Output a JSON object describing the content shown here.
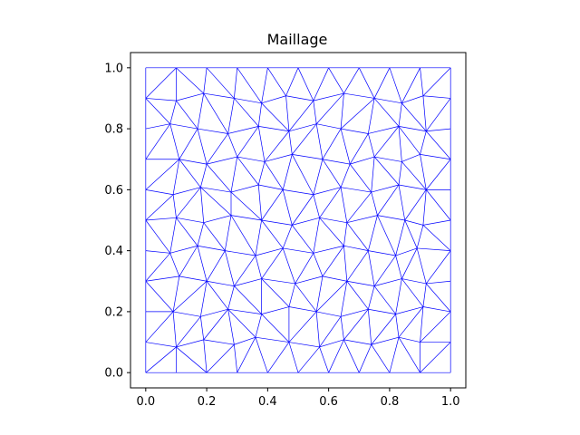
{
  "chart_data": {
    "type": "mesh",
    "title": "Maillage",
    "xlabel": "",
    "ylabel": "",
    "xlim": [
      -0.05,
      1.05
    ],
    "ylim": [
      -0.05,
      1.05
    ],
    "xticks": [
      0.0,
      0.2,
      0.4,
      0.6,
      0.8,
      1.0
    ],
    "yticks": [
      0.0,
      0.2,
      0.4,
      0.6,
      0.8,
      1.0
    ],
    "xtick_labels": [
      "0.0",
      "0.2",
      "0.4",
      "0.6",
      "0.8",
      "1.0"
    ],
    "ytick_labels": [
      "0.0",
      "0.2",
      "0.4",
      "0.6",
      "0.8",
      "1.0"
    ],
    "grid": false,
    "mesh_color": "#0000ff",
    "domain": {
      "x": [
        0,
        1
      ],
      "y": [
        0,
        1
      ]
    },
    "boundary_nodes_per_side": 11,
    "interior_rows": [
      [
        0.1,
        0.19,
        0.29,
        0.36,
        0.47,
        0.57,
        0.65,
        0.74,
        0.83,
        0.9
      ],
      [
        0.09,
        0.18,
        0.27,
        0.38,
        0.47,
        0.56,
        0.64,
        0.73,
        0.82,
        0.91
      ],
      [
        0.11,
        0.2,
        0.29,
        0.38,
        0.49,
        0.58,
        0.66,
        0.75,
        0.84,
        0.92
      ],
      [
        0.08,
        0.17,
        0.26,
        0.36,
        0.45,
        0.55,
        0.65,
        0.73,
        0.82,
        0.89
      ],
      [
        0.1,
        0.19,
        0.28,
        0.38,
        0.48,
        0.57,
        0.66,
        0.76,
        0.85,
        0.91
      ],
      [
        0.09,
        0.18,
        0.28,
        0.37,
        0.45,
        0.55,
        0.64,
        0.74,
        0.83,
        0.92
      ],
      [
        0.11,
        0.2,
        0.3,
        0.39,
        0.48,
        0.58,
        0.67,
        0.75,
        0.84,
        0.9
      ],
      [
        0.08,
        0.17,
        0.27,
        0.37,
        0.47,
        0.56,
        0.64,
        0.73,
        0.83,
        0.92
      ],
      [
        0.1,
        0.19,
        0.29,
        0.38,
        0.46,
        0.55,
        0.65,
        0.75,
        0.84,
        0.91
      ]
    ],
    "interior_row_y": [
      0.1,
      0.2,
      0.3,
      0.4,
      0.5,
      0.6,
      0.7,
      0.8,
      0.9
    ]
  }
}
